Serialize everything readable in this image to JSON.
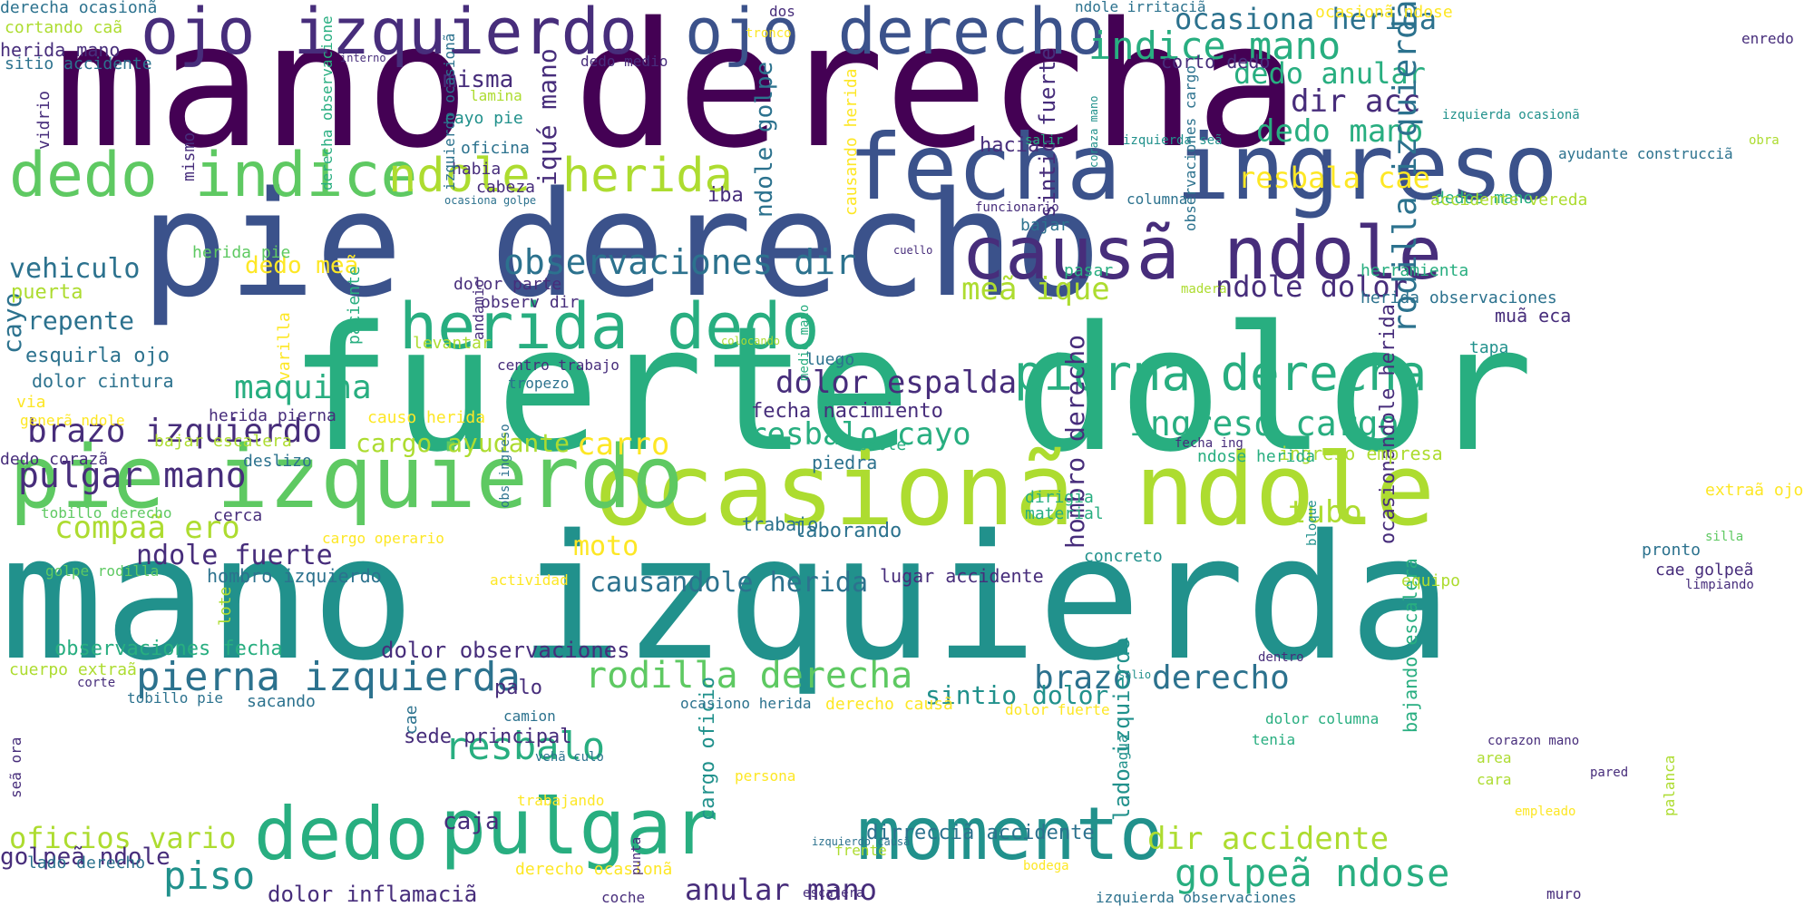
{
  "palette": {
    "dark_purple": "#440154",
    "indigo": "#472d7b",
    "blue": "#3b528b",
    "steel": "#2c728e",
    "teal": "#21918c",
    "sea": "#28ae80",
    "green": "#5ec962",
    "lime": "#addc30",
    "yellow": "#fde725"
  },
  "words": [
    "mano derecha",
    "mano izquierda",
    "fuerte dolor",
    "pie derecho",
    "ocasionã ndole",
    "pie izquierdo",
    "fecha ingreso",
    "causã ndole",
    "ojo izquierdo",
    "ojo derecho",
    "dedo indice",
    "herida dedo",
    "pulgar",
    "dedo",
    "momento",
    "ndole",
    "herida",
    "pierna derecha",
    "observaciones dir",
    "indice mano",
    "ocasiona herida",
    "dedo anular",
    "dir acc",
    "dedo mano",
    "resbala cae",
    "dolor espalda",
    "maquina",
    "brazo izquierdo",
    "pulgar mano",
    "compaã ero",
    "ndole fuerte",
    "cargo ayudante",
    "carro",
    "resbalo cayo",
    "ingreso cargo",
    "pierna izquierda",
    "rodilla derecha",
    "brazo derecho",
    "causandole herida",
    "sintio dolor",
    "resbalo",
    "oficios vario",
    "piso",
    "anular mano",
    "dir accidente",
    "golpeã ndose",
    "hombro derecho",
    "sintio fuerte",
    "rodilla izquierda",
    "tubo",
    "moto",
    "vehiculo",
    "repente",
    "cayo",
    "misma",
    "iqué mano",
    "iba",
    "meã ique",
    "ndole dolor",
    "dedo meã",
    "ndole golpe",
    "fecha nacimiento",
    "golpeã ndole",
    "dolor inflamaciã",
    "dolor observaciones",
    "observaciones fecha",
    "sede principal",
    "caja",
    "palo",
    "lado izquierdo",
    "cargo oficio",
    "ocasionandole herida",
    "bajando escalera",
    "dirrecciã accidente",
    "laborando",
    "puerta",
    "esquirla ojo",
    "dolor cintura",
    "cuerpo extraã",
    "lado derecho",
    "hombro izquierdo",
    "lugar accidente",
    "piedra",
    "trabajo",
    "ingreso empresa",
    "herida mano",
    "sitio accidente",
    "cortando caã",
    "derecha ocasionã",
    "lamina",
    "cayo pie",
    "oficina",
    "habia",
    "cabeza",
    "hacia",
    "corto dedo",
    "bajar",
    "columna",
    "dedos mano",
    "accidente vereda",
    "herramienta",
    "herida observaciones",
    "muã eca",
    "tapa",
    "salir",
    "obra",
    "ayudante construcciã",
    "izquierda ocasionã",
    "enredo",
    "ndole irritaciã",
    "ocasionã ndose",
    "dos",
    "tronco",
    "interno",
    "dedo medio",
    "mismo",
    "vidrio",
    "derecha observacione",
    "izquierdo ocasionã",
    "causando herida",
    "coraza mano",
    "izquierda seã",
    "ocasiona golpe",
    "funcionario",
    "cuello",
    "herida pie",
    "varilla",
    "paciente",
    "dolor parte",
    "observ dir",
    "levantar",
    "centro trabajo",
    "tropezo",
    "medio mano",
    "colocando",
    "luego",
    "pasar",
    "observaciones cargo",
    "madera",
    "andamio",
    "via",
    "generã ndole",
    "herida pierna",
    "causo herida",
    "bajar escalera",
    "deslizo",
    "dedo corazã",
    "tobillo derecho",
    "cerca",
    "cargo operario",
    "cable",
    "fecha ing",
    "ndose herida",
    "dirigia",
    "material",
    "obs ingreso",
    "bloque",
    "extraã ojo",
    "silla",
    "pronto",
    "cae golpeã",
    "limpiando",
    "concreto",
    "equipo",
    "actividad",
    "golpe rodilla",
    "lote",
    "corte",
    "tobillo pie",
    "sacando",
    "cae",
    "seã ora",
    "vehã culo",
    "camion",
    "ocasiono herida",
    "derecho causã",
    "dolor fuerte",
    "salio",
    "dolor columna",
    "tenia",
    "agua",
    "dentro",
    "persona",
    "trabajando",
    "derecho ocasionã",
    "punta",
    "frente",
    "izquierdo causã",
    "bodega",
    "escalera",
    "coche",
    "izquierda observaciones",
    "muro",
    "corazon mano",
    "pared",
    "area",
    "cara",
    "empleado",
    "palanca",
    "dedo corazon"
  ]
}
